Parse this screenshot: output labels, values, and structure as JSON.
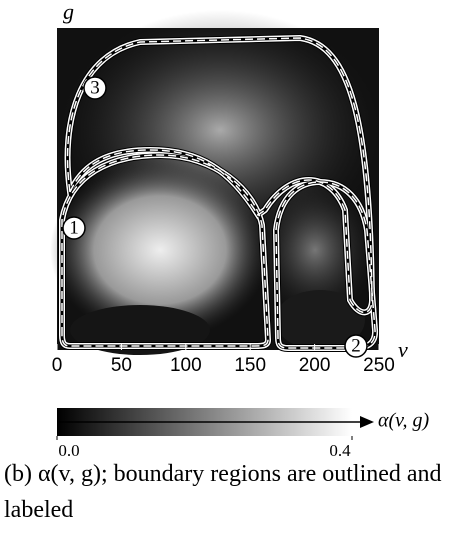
{
  "chart_data": {
    "type": "image",
    "x_label": "v",
    "y_label": "g",
    "xlim": [
      0,
      250
    ],
    "xticks": [
      0,
      50,
      100,
      150,
      200,
      250
    ],
    "regions": [
      "1",
      "2",
      "3"
    ],
    "colorbar": {
      "label": "α(v, g)",
      "lim": [
        0,
        0.4
      ],
      "ticks": [
        {
          "value": 0,
          "label": "0.0"
        },
        {
          "value": 0.4,
          "label": "0.4"
        }
      ]
    },
    "caption": "(b) α(v, g); boundary regions are outlined and labeled"
  }
}
